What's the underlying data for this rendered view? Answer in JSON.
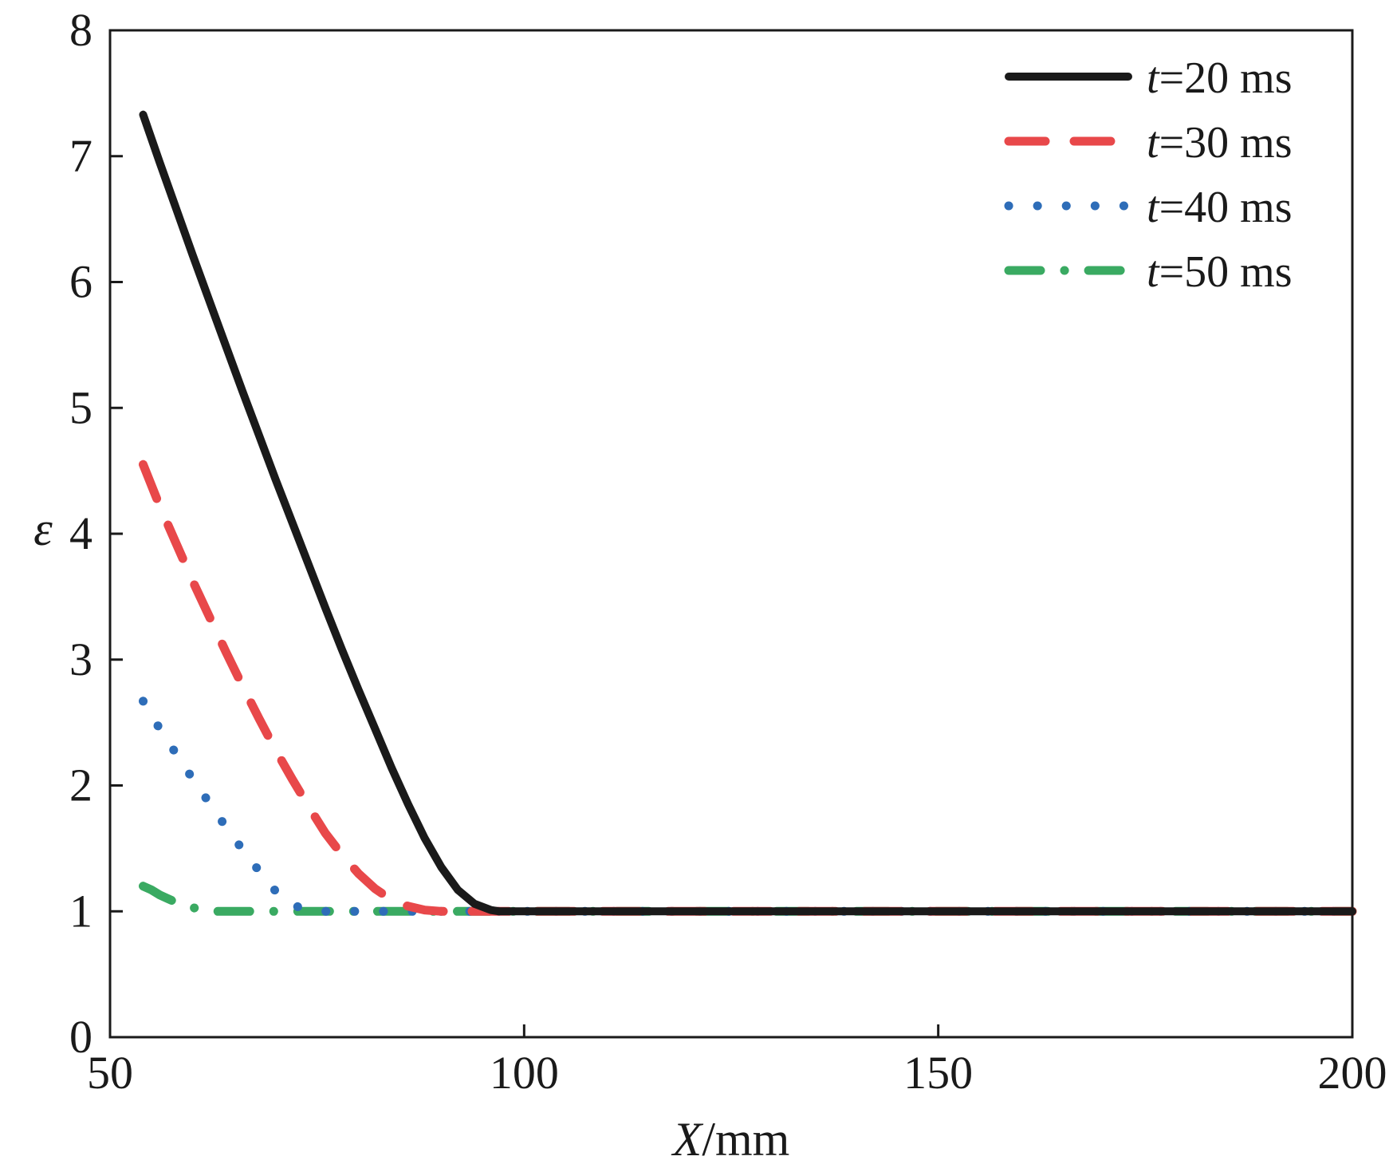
{
  "chart_data": {
    "type": "line",
    "xlabel": {
      "italic": "X",
      "rest": "/mm"
    },
    "ylabel": "ε",
    "xlim": [
      50,
      200
    ],
    "ylim": [
      0,
      8
    ],
    "xticks": [
      "50",
      "100",
      "150",
      "200"
    ],
    "yticks": [
      "0",
      "1",
      "2",
      "3",
      "4",
      "5",
      "6",
      "7",
      "8"
    ],
    "grid": false,
    "legend_position": "top-right",
    "series": [
      {
        "name": "t=20 ms",
        "name_italic": "t",
        "name_rest": "=20 ms",
        "color": "#1a1a1a",
        "style": "solid",
        "x": [
          54,
          56,
          58,
          60,
          62,
          64,
          66,
          68,
          70,
          72,
          74,
          76,
          78,
          80,
          82,
          84,
          86,
          88,
          90,
          92,
          94,
          96,
          97,
          100,
          120,
          140,
          160,
          180,
          200
        ],
        "y": [
          7.33,
          6.95,
          6.58,
          6.21,
          5.85,
          5.49,
          5.13,
          4.78,
          4.43,
          4.09,
          3.75,
          3.41,
          3.08,
          2.76,
          2.45,
          2.14,
          1.85,
          1.58,
          1.35,
          1.17,
          1.06,
          1.01,
          1.0,
          1.0,
          1.0,
          1.0,
          1.0,
          1.0,
          1.0
        ]
      },
      {
        "name": "t=30 ms",
        "name_italic": "t",
        "name_rest": "=30 ms",
        "color": "#e8484a",
        "style": "dashed",
        "x": [
          54,
          56,
          58,
          60,
          62,
          64,
          66,
          68,
          70,
          72,
          74,
          76,
          78,
          80,
          82,
          84,
          86,
          88,
          90,
          92,
          94,
          100,
          120,
          140,
          160,
          180,
          200
        ],
        "y": [
          4.55,
          4.22,
          3.92,
          3.62,
          3.34,
          3.06,
          2.79,
          2.53,
          2.28,
          2.05,
          1.83,
          1.62,
          1.45,
          1.3,
          1.18,
          1.09,
          1.04,
          1.01,
          1.0,
          1.0,
          1.0,
          1.0,
          1.0,
          1.0,
          1.0,
          1.0,
          1.0
        ]
      },
      {
        "name": "t=40 ms",
        "name_italic": "t",
        "name_rest": "=40 ms",
        "color": "#2e6db8",
        "style": "dotted",
        "x": [
          54,
          56,
          58,
          60,
          62,
          64,
          66,
          68,
          70,
          72,
          74,
          76,
          78,
          80,
          82,
          86,
          90,
          100,
          120,
          140,
          160,
          180,
          200
        ],
        "y": [
          2.67,
          2.45,
          2.25,
          2.05,
          1.86,
          1.67,
          1.49,
          1.32,
          1.16,
          1.05,
          1.01,
          1.0,
          1.0,
          1.0,
          1.0,
          1.0,
          1.0,
          1.0,
          1.0,
          1.0,
          1.0,
          1.0,
          1.0
        ]
      },
      {
        "name": "t=50 ms",
        "name_italic": "t",
        "name_rest": "=50 ms",
        "color": "#3aaa62",
        "style": "dashdot",
        "x": [
          54,
          55,
          56,
          57,
          58,
          59,
          60,
          61,
          62,
          64,
          66,
          70,
          80,
          100,
          120,
          140,
          160,
          180,
          200
        ],
        "y": [
          1.2,
          1.17,
          1.13,
          1.1,
          1.07,
          1.05,
          1.03,
          1.01,
          1.0,
          1.0,
          1.0,
          1.0,
          1.0,
          1.0,
          1.0,
          1.0,
          1.0,
          1.0,
          1.0
        ]
      }
    ]
  }
}
